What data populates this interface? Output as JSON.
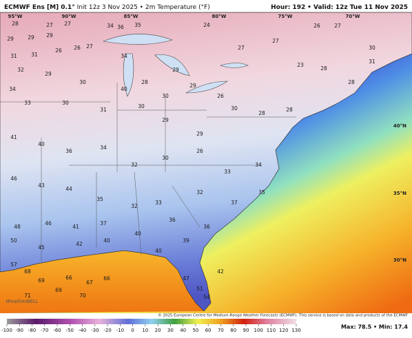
{
  "header": {
    "model": "ECMWF Ens [M] 0.1°",
    "run": "Init 12z 3 Nov 2025 • 2m Temperature (°F)",
    "hour": "Hour: 192",
    "valid": "• Valid: 12z Tue 11 Nov 2025"
  },
  "map": {
    "lon_labels": [
      "95°W",
      "90°W",
      "85°W",
      "80°W",
      "75°W",
      "70°W"
    ],
    "lat_labels": [
      "40°N",
      "35°N",
      "30°N"
    ],
    "stations": [
      28,
      27,
      27,
      34,
      36,
      35,
      24,
      29,
      29,
      29,
      26,
      26,
      27,
      31,
      31,
      34,
      29,
      32,
      29,
      30,
      40,
      28,
      30,
      29,
      26,
      27,
      27,
      26,
      27,
      30,
      23,
      28,
      28,
      31,
      34,
      33,
      30,
      31,
      30,
      29,
      29,
      30,
      28,
      28,
      41,
      40,
      36,
      34,
      32,
      30,
      26,
      33,
      34,
      46,
      43,
      44,
      35,
      32,
      33,
      32,
      37,
      35,
      48,
      46,
      41,
      37,
      40,
      36,
      36,
      50,
      45,
      42,
      40,
      40,
      39,
      57,
      68,
      69,
      66,
      67,
      66,
      71,
      69,
      70,
      47,
      51,
      54,
      42
    ]
  },
  "footer": "© 2025 European Centre for Medium-Range Weather Forecasts (ECMWF). This service is based on data and products of the ECMWF",
  "logo": "WeatherBELL",
  "colorbar": {
    "ticks": [
      -100,
      -90,
      -80,
      -70,
      -60,
      -50,
      -40,
      -30,
      -20,
      -10,
      0,
      10,
      20,
      30,
      40,
      50,
      60,
      70,
      80,
      90,
      100,
      110,
      120,
      130
    ]
  },
  "stats": "Max: 78.5 • Min: 17.4"
}
